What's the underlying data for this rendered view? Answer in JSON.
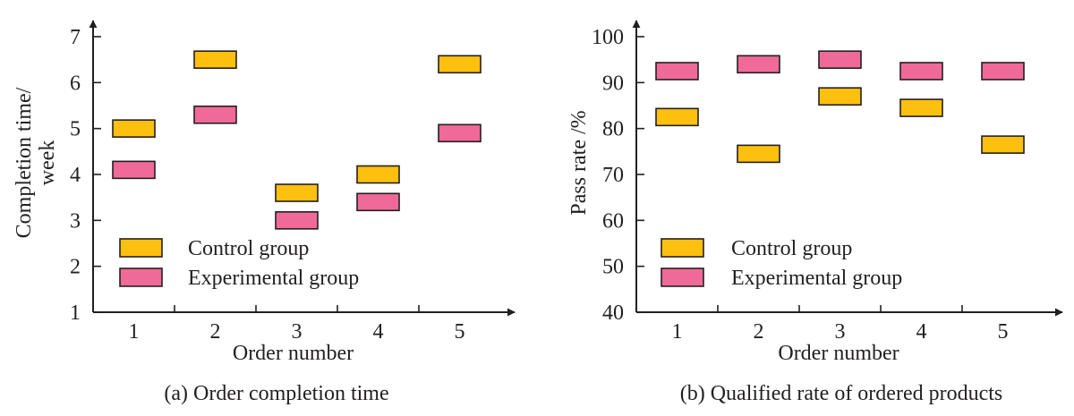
{
  "colors": {
    "control": "#fec00f",
    "experimental": "#ef6a98",
    "axis": "#231f20",
    "marker_stroke": "#231f20"
  },
  "chart_data": [
    {
      "type": "scatter",
      "marker": "rectangle",
      "caption": "(a) Order completion time",
      "xlabel": "Order number",
      "ylabel": "Completion time/ week",
      "ylabel_lines": [
        "Completion time/",
        "week"
      ],
      "categories": [
        "1",
        "2",
        "3",
        "4",
        "5"
      ],
      "ylim": [
        1,
        7
      ],
      "yticks": [
        1,
        2,
        3,
        4,
        5,
        6,
        7
      ],
      "ytick_labels": [
        "1",
        "2",
        "3",
        "4",
        "5",
        "6",
        "7"
      ],
      "grid": false,
      "legend_position": "bottom-left",
      "series": [
        {
          "name": "Control group",
          "color_key": "control",
          "values": [
            5.0,
            6.5,
            3.6,
            4.0,
            6.4
          ]
        },
        {
          "name": "Experimental group",
          "color_key": "experimental",
          "values": [
            4.1,
            5.3,
            3.0,
            3.4,
            4.9
          ]
        }
      ]
    },
    {
      "type": "scatter",
      "marker": "rectangle",
      "caption": "(b) Qualified rate of ordered products",
      "xlabel": "Order number",
      "ylabel": "Pass rate /%",
      "ylabel_lines": [
        "Pass rate /%"
      ],
      "categories": [
        "1",
        "2",
        "3",
        "4",
        "5"
      ],
      "ylim": [
        40,
        100
      ],
      "yticks": [
        40,
        50,
        60,
        70,
        80,
        90,
        100
      ],
      "ytick_labels": [
        "40",
        "50",
        "60",
        "70",
        "80",
        "90",
        "100"
      ],
      "grid": false,
      "legend_position": "bottom-left",
      "series": [
        {
          "name": "Control group",
          "color_key": "control",
          "values": [
            82.5,
            74.5,
            87.0,
            84.5,
            76.5
          ]
        },
        {
          "name": "Experimental group",
          "color_key": "experimental",
          "values": [
            92.5,
            94.0,
            95.0,
            92.5,
            92.5
          ]
        }
      ]
    }
  ]
}
